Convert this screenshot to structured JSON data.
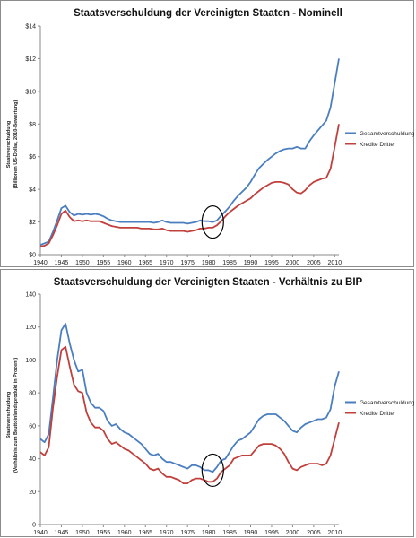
{
  "chart_data": [
    {
      "type": "line",
      "title": "Staatsverschuldung der Vereinigten Staaten - Nominell",
      "ylabel": "Staatsverschuldung",
      "ylabel2": "(Billionen US-Dollar, 2010-Bewertung)",
      "xlim": [
        1940,
        2011
      ],
      "ylim": [
        0,
        14
      ],
      "xticks": [
        "1940",
        "1945",
        "1950",
        "1955",
        "1960",
        "1965",
        "1970",
        "1975",
        "1980",
        "1985",
        "1990",
        "1995",
        "2000",
        "2005",
        "2010"
      ],
      "yticks": [
        "$0",
        "$2",
        "$4",
        "$6",
        "$8",
        "$10",
        "$12",
        "$14"
      ],
      "grid": false,
      "legend_position": "right",
      "annotation": "circle around 1981",
      "annotation_x": 1981,
      "annotation_y": 2.0,
      "series": [
        {
          "name": "Gesamtverschuldung",
          "color": "#4a7ebf",
          "values": [
            0.6,
            0.7,
            0.8,
            1.4,
            2.1,
            2.85,
            3.0,
            2.6,
            2.4,
            2.5,
            2.45,
            2.5,
            2.45,
            2.5,
            2.45,
            2.35,
            2.2,
            2.1,
            2.05,
            2.0,
            2.0,
            2.0,
            2.0,
            2.0,
            2.0,
            2.0,
            2.0,
            1.95,
            2.0,
            2.1,
            2.0,
            1.95,
            1.95,
            1.95,
            1.95,
            1.9,
            1.95,
            2.0,
            2.1,
            2.05,
            2.05,
            2.0,
            2.1,
            2.4,
            2.65,
            2.95,
            3.3,
            3.6,
            3.85,
            4.1,
            4.45,
            4.9,
            5.3,
            5.55,
            5.8,
            6.0,
            6.2,
            6.35,
            6.45,
            6.5,
            6.5,
            6.6,
            6.5,
            6.5,
            6.95,
            7.3,
            7.6,
            7.9,
            8.2,
            9.0,
            10.5,
            12.0
          ]
        },
        {
          "name": "Kredite Dritter",
          "color": "#c0403c",
          "values": [
            0.5,
            0.55,
            0.7,
            1.2,
            1.8,
            2.5,
            2.7,
            2.3,
            2.05,
            2.1,
            2.05,
            2.1,
            2.05,
            2.05,
            2.05,
            1.95,
            1.85,
            1.75,
            1.7,
            1.65,
            1.65,
            1.65,
            1.65,
            1.65,
            1.6,
            1.6,
            1.6,
            1.55,
            1.55,
            1.6,
            1.5,
            1.45,
            1.45,
            1.45,
            1.45,
            1.4,
            1.45,
            1.5,
            1.6,
            1.6,
            1.65,
            1.65,
            1.8,
            2.05,
            2.35,
            2.6,
            2.8,
            3.0,
            3.15,
            3.3,
            3.45,
            3.7,
            3.9,
            4.1,
            4.25,
            4.4,
            4.45,
            4.45,
            4.4,
            4.3,
            4.0,
            3.8,
            3.75,
            3.95,
            4.25,
            4.45,
            4.55,
            4.65,
            4.7,
            5.25,
            6.6,
            8.0
          ]
        }
      ]
    },
    {
      "type": "line",
      "title": "Staatsverschuldung der Vereinigten Staaten - Verhältnis zu BIP",
      "ylabel": "Staatsverschuldung",
      "ylabel2": "(Verhältnis zum Bruttoinlandsprodukt in Prozent)",
      "xlim": [
        1940,
        2011
      ],
      "ylim": [
        0,
        140
      ],
      "xticks": [
        "1940",
        "1945",
        "1950",
        "1955",
        "1960",
        "1965",
        "1970",
        "1975",
        "1980",
        "1985",
        "1990",
        "1995",
        "2000",
        "2005",
        "2010"
      ],
      "yticks": [
        "0",
        "20",
        "40",
        "60",
        "80",
        "100",
        "120",
        "140"
      ],
      "grid": false,
      "legend_position": "right",
      "annotation": "circle around 1981",
      "annotation_x": 1981,
      "annotation_y": 33,
      "series": [
        {
          "name": "Gesamtverschuldung",
          "color": "#4a7ebf",
          "values": [
            52,
            50,
            55,
            77,
            100,
            118,
            122,
            110,
            100,
            93,
            94,
            80,
            74,
            71,
            71,
            69,
            63,
            60,
            61,
            58,
            56,
            55,
            53,
            51,
            49,
            46,
            43,
            42,
            43,
            40,
            38,
            38,
            37,
            36,
            35,
            34,
            36,
            36,
            35,
            33,
            33,
            32,
            35,
            39,
            40,
            44,
            48,
            51,
            52,
            54,
            56,
            60,
            64,
            66,
            67,
            67,
            67,
            65,
            63,
            60,
            57,
            56,
            59,
            61,
            62,
            63,
            64,
            64,
            65,
            70,
            84,
            93
          ]
        },
        {
          "name": "Kredite Dritter",
          "color": "#c0403c",
          "values": [
            44,
            42,
            47,
            71,
            90,
            106,
            108,
            96,
            85,
            81,
            80,
            68,
            62,
            59,
            59,
            57,
            52,
            49,
            50,
            48,
            46,
            45,
            43,
            41,
            39,
            37,
            34,
            33,
            34,
            31,
            29,
            29,
            28,
            27,
            25,
            25,
            27,
            28,
            28,
            27,
            26,
            26,
            28,
            32,
            34,
            36,
            40,
            41,
            42,
            42,
            42,
            45,
            48,
            49,
            49,
            49,
            48,
            46,
            43,
            38,
            34,
            33,
            35,
            36,
            37,
            37,
            37,
            36,
            37,
            42,
            52,
            62
          ]
        }
      ]
    }
  ]
}
